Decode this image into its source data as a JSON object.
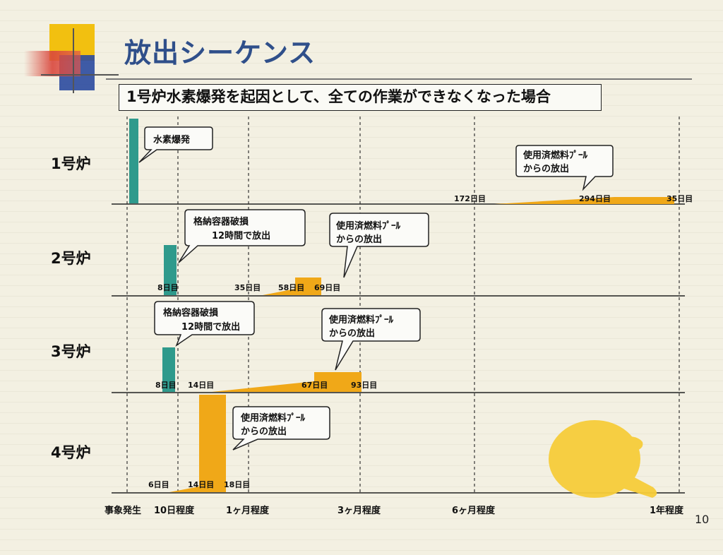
{
  "slide": {
    "title": "放出シーケンス",
    "subtitle": "1号炉水素爆発を起因として、全ての作業ができなくなった場合",
    "page_number": "10"
  },
  "colors": {
    "teal": "#2f9a8c",
    "orange": "#f0a818",
    "title_blue": "#2f4f8a",
    "deco_yellow": "#f2c010",
    "deco_blue": "#2b4aa0",
    "deco_red": "#d9463c",
    "thumb": "#f7cd3a"
  },
  "axis": {
    "labels": [
      "事象発生",
      "10日程度",
      "1ヶ月程度",
      "3ヶ月程度",
      "6ヶ月程度",
      "1年程度"
    ]
  },
  "reactors": [
    {
      "name": "1号炉",
      "callouts": [
        "水素爆発",
        "使用済燃料ﾌﾟｰﾙ\nからの放出"
      ],
      "day_labels": [
        "172日目",
        "294日目",
        "35日目"
      ]
    },
    {
      "name": "2号炉",
      "callouts": [
        "格納容器破損\n　　12時間で放出",
        "使用済燃料ﾌﾟｰﾙ\nからの放出"
      ],
      "day_labels": [
        "8日目",
        "35日目",
        "58日目",
        "69日目"
      ]
    },
    {
      "name": "3号炉",
      "callouts": [
        "格納容器破損\n　　12時間で放出",
        "使用済燃料ﾌﾟｰﾙ\nからの放出"
      ],
      "day_labels": [
        "8日目",
        "14日目",
        "67日目",
        "93日目"
      ]
    },
    {
      "name": "4号炉",
      "callouts": [
        "使用済燃料ﾌﾟｰﾙ\nからの放出"
      ],
      "day_labels": [
        "6日目",
        "14日目",
        "18日目"
      ]
    }
  ]
}
